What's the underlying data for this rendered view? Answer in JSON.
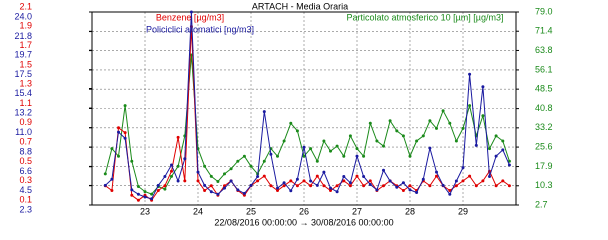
{
  "chart_data": {
    "type": "line",
    "title": "ARTACH - Media Oraria",
    "x_label": "22/08/2016 00:00:00 → 30/08/2016 00:00:00",
    "xlim": [
      22,
      30
    ],
    "xticks": [
      23,
      24,
      25,
      26,
      27,
      28,
      29
    ],
    "ylim": [
      0.1,
      2.1
    ],
    "yticks": [
      0.1,
      0.3,
      0.5,
      0.7,
      0.9,
      1.1,
      1.3,
      1.5,
      1.7,
      1.9,
      2.1
    ],
    "y2lim": [
      2.3,
      24.0
    ],
    "y2ticks": [
      2.3,
      4.5,
      6.6,
      8.8,
      {
        "value": 11,
        "label": "11.0"
      },
      13.2,
      15.4,
      17.5,
      19.7,
      21.8,
      {
        "value": 24,
        "label": "24.0"
      }
    ],
    "y3lim": [
      2.7,
      79.0
    ],
    "y3ticks": [
      2.7,
      10.3,
      17.9,
      25.6,
      33.2,
      40.8,
      48.5,
      56.1,
      63.8,
      71.4,
      {
        "value": 79,
        "label": "79.0"
      }
    ],
    "grid": true,
    "x": [
      22.25,
      22.375,
      22.5,
      22.625,
      22.75,
      22.875,
      23,
      23.125,
      23.25,
      23.375,
      23.5,
      23.625,
      23.75,
      23.875,
      24,
      24.125,
      24.25,
      24.375,
      24.5,
      24.625,
      24.75,
      24.875,
      25,
      25.125,
      25.25,
      25.375,
      25.5,
      25.625,
      25.75,
      25.875,
      26,
      26.125,
      26.25,
      26.375,
      26.5,
      26.625,
      26.75,
      26.875,
      27,
      27.125,
      27.25,
      27.375,
      27.5,
      27.625,
      27.75,
      27.875,
      28,
      28.125,
      28.25,
      28.375,
      28.5,
      28.625,
      28.75,
      28.875,
      29,
      29.125,
      29.25,
      29.375,
      29.5,
      29.625,
      29.75,
      29.875
    ],
    "series": [
      {
        "name": "Benzene [µg/m3]",
        "color": "#e00000",
        "axis": "y",
        "values": [
          0.3,
          0.25,
          0.9,
          0.85,
          0.2,
          0.15,
          0.2,
          0.15,
          0.25,
          0.3,
          0.45,
          0.8,
          0.35,
          1.95,
          0.35,
          0.25,
          0.3,
          0.2,
          0.3,
          0.35,
          0.25,
          0.2,
          0.3,
          0.35,
          0.4,
          0.3,
          0.25,
          0.3,
          0.35,
          0.3,
          0.35,
          0.3,
          0.4,
          0.3,
          0.25,
          0.3,
          0.35,
          0.3,
          0.4,
          0.3,
          0.35,
          0.25,
          0.3,
          0.35,
          0.3,
          0.25,
          0.3,
          0.25,
          0.35,
          0.3,
          0.4,
          0.3,
          0.25,
          0.3,
          0.35,
          0.4,
          0.3,
          0.35,
          0.45,
          0.3,
          0.35,
          0.3
        ]
      },
      {
        "name": "Policiclici aromatici [ng/m3]",
        "color": "#1a1aa0",
        "axis": "y2",
        "values": [
          4.5,
          5.2,
          10.5,
          9.8,
          4.0,
          3.5,
          3.2,
          3.0,
          4.5,
          5.5,
          6.8,
          5.0,
          7.5,
          24.0,
          6.0,
          4.5,
          3.8,
          3.5,
          4.2,
          5.0,
          4.0,
          3.6,
          4.5,
          5.5,
          12.8,
          8.0,
          4.2,
          4.8,
          3.9,
          5.2,
          8.8,
          5.0,
          4.5,
          6.0,
          4.2,
          3.8,
          5.5,
          4.8,
          7.8,
          5.5,
          4.6,
          4.0,
          6.2,
          5.0,
          4.3,
          4.8,
          4.0,
          3.7,
          5.2,
          8.7,
          6.0,
          4.5,
          3.5,
          5.0,
          6.5,
          17.0,
          9.0,
          15.6,
          5.5,
          7.8,
          8.5,
          6.8
        ]
      },
      {
        "name": "Particolato atmosferico 10 [µm] [µg/m3]",
        "color": "#1a8a1a",
        "axis": "y3",
        "values": [
          15,
          25,
          22,
          42,
          20,
          10,
          8,
          7,
          10,
          9,
          14,
          18,
          30,
          62,
          25,
          18,
          14,
          12,
          15,
          17,
          20,
          22,
          18,
          15,
          20,
          25,
          22,
          28,
          35,
          32,
          22,
          25,
          20,
          28,
          24,
          26,
          22,
          30,
          25,
          22,
          35,
          28,
          26,
          36,
          32,
          30,
          22,
          28,
          30,
          36,
          33,
          40,
          35,
          28,
          33,
          42,
          30,
          38,
          25,
          30,
          28,
          20
        ]
      }
    ]
  }
}
